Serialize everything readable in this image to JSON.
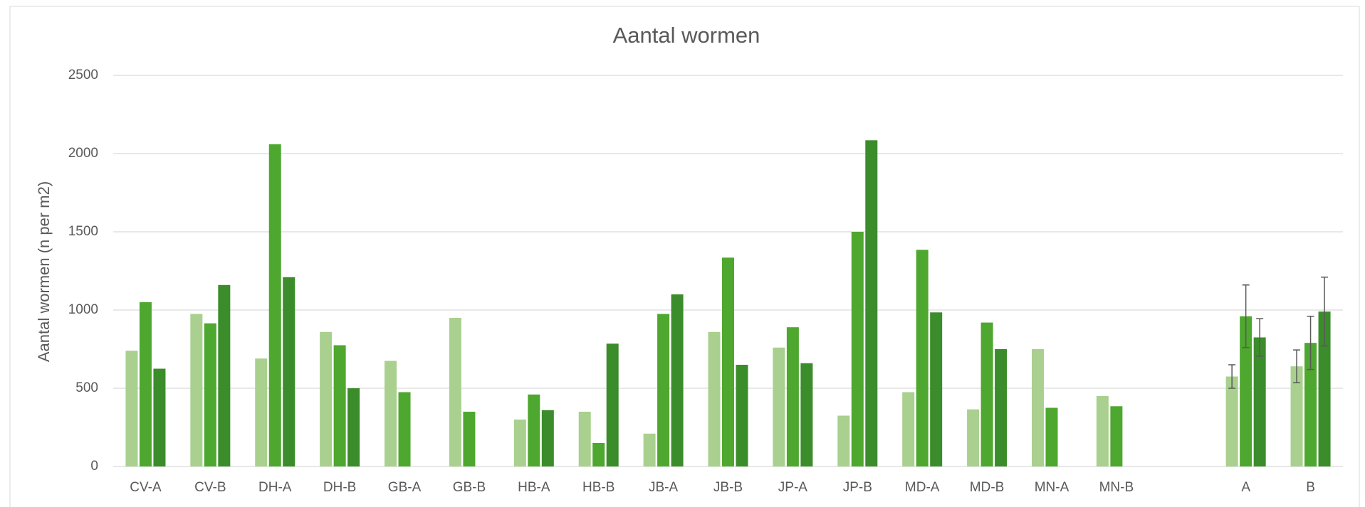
{
  "chart_data": {
    "type": "bar",
    "title": "Aantal wormen",
    "y_label": "Aantal wormen (n per m2)",
    "categories": [
      "CV-A",
      "CV-B",
      "DH-A",
      "DH-B",
      "GB-A",
      "GB-B",
      "HB-A",
      "HB-B",
      "JB-A",
      "JB-B",
      "JP-A",
      "JP-B",
      "MD-A",
      "MD-B",
      "MN-A",
      "MN-B",
      null,
      "A",
      "B"
    ],
    "series": [
      {
        "color": "#a9d08e",
        "values": [
          740,
          975,
          690,
          860,
          675,
          950,
          300,
          350,
          210,
          860,
          760,
          325,
          475,
          365,
          750,
          450,
          null,
          575,
          640
        ],
        "errors": [
          null,
          null,
          null,
          null,
          null,
          null,
          null,
          null,
          null,
          null,
          null,
          null,
          null,
          null,
          null,
          null,
          null,
          75,
          105
        ]
      },
      {
        "color": "#4ea72e",
        "values": [
          1050,
          915,
          2060,
          775,
          475,
          350,
          460,
          150,
          975,
          1335,
          890,
          1500,
          1385,
          920,
          375,
          385,
          null,
          960,
          790
        ],
        "errors": [
          null,
          null,
          null,
          null,
          null,
          null,
          null,
          null,
          null,
          null,
          null,
          null,
          null,
          null,
          null,
          null,
          null,
          200,
          170
        ]
      },
      {
        "color": "#3b8c2a",
        "values": [
          625,
          1160,
          1210,
          500,
          null,
          null,
          360,
          785,
          1100,
          650,
          660,
          2085,
          985,
          750,
          null,
          null,
          null,
          825,
          990
        ],
        "errors": [
          null,
          null,
          null,
          null,
          null,
          null,
          null,
          null,
          null,
          null,
          null,
          null,
          null,
          null,
          null,
          null,
          null,
          120,
          220
        ]
      }
    ],
    "ylim": [
      0,
      2500
    ],
    "yticks": [
      0,
      500,
      1000,
      1500,
      2000,
      2500
    ],
    "grid": true
  }
}
